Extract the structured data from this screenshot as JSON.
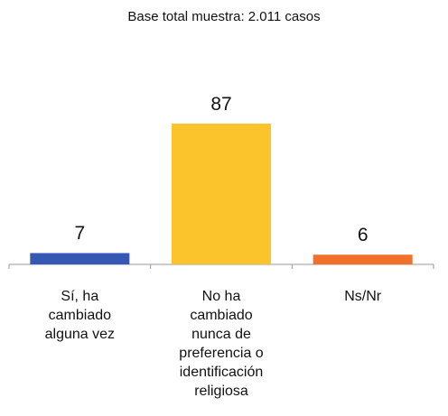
{
  "chart_data": {
    "type": "bar",
    "title": "Base total muestra: 2.011 casos",
    "categories": [
      "Sí, ha\ncambiado\nalguna vez",
      "No ha\ncambiado\nnunca de\npreferencia o\nidentificación\nreligiosa",
      "Ns/Nr"
    ],
    "values": [
      7,
      87,
      6
    ],
    "colors": [
      "#3458b4",
      "#fcc42c",
      "#f0702c"
    ]
  }
}
